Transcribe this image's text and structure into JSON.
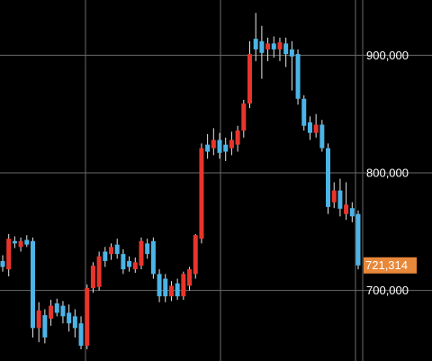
{
  "chart_data": {
    "type": "candlestick",
    "ylim": [
      640000,
      947000
    ],
    "yticks": [
      {
        "value": 700000,
        "label": "700,000"
      },
      {
        "value": 800000,
        "label": "800,000"
      },
      {
        "value": 900000,
        "label": "900,000"
      }
    ],
    "grid": true,
    "up_color": "#e8352c",
    "down_color": "#4cb4e6",
    "last_color": "#e8883a",
    "open": [
      725000,
      718000,
      742000,
      737000,
      743000,
      742000,
      668000,
      679000,
      676000,
      689000,
      687000,
      681000,
      678000,
      672000,
      653000,
      702000,
      703000,
      733000,
      731000,
      739000,
      731000,
      725000,
      718000,
      721000,
      740000,
      742000,
      714000,
      710000,
      695000,
      706000,
      695000,
      704000,
      714000,
      744000,
      824000,
      821000,
      828000,
      824000,
      821000,
      824000,
      836000,
      859000,
      914000,
      912000,
      905000,
      910000,
      905000,
      910000,
      905000,
      901000,
      863000,
      843000,
      834000,
      841000,
      821000,
      775000,
      785000,
      765000,
      770000,
      765000
    ],
    "high": [
      730000,
      748000,
      746000,
      745000,
      747000,
      745000,
      690000,
      684000,
      692000,
      693000,
      691000,
      688000,
      684000,
      678000,
      705000,
      724000,
      733000,
      737000,
      740000,
      744000,
      735000,
      729000,
      728000,
      745000,
      744000,
      745000,
      718000,
      714000,
      708000,
      710000,
      716000,
      720000,
      748000,
      825000,
      833000,
      838000,
      834000,
      830000,
      835000,
      840000,
      862000,
      912000,
      936000,
      925000,
      915000,
      916000,
      915000,
      915000,
      912000,
      905000,
      866000,
      848000,
      850000,
      845000,
      825000,
      792000,
      795000,
      792000,
      775000,
      768000
    ],
    "low": [
      716000,
      712000,
      736000,
      733000,
      737000,
      660000,
      656000,
      655000,
      670000,
      678000,
      672000,
      665000,
      660000,
      650000,
      650000,
      698000,
      700000,
      720000,
      726000,
      727000,
      714000,
      716000,
      715000,
      718000,
      727000,
      710000,
      690000,
      690000,
      691000,
      692000,
      692000,
      700000,
      710000,
      740000,
      812000,
      815000,
      812000,
      810000,
      815000,
      818000,
      830000,
      855000,
      895000,
      880000,
      895000,
      898000,
      895000,
      890000,
      870000,
      858000,
      836000,
      828000,
      830000,
      818000,
      765000,
      770000,
      763000,
      760000,
      758000,
      718000
    ],
    "close": [
      720000,
      744000,
      740000,
      742000,
      739000,
      668000,
      683000,
      660000,
      687000,
      681000,
      678000,
      672000,
      668000,
      653000,
      702000,
      721000,
      729000,
      725000,
      737000,
      731000,
      718000,
      720000,
      724000,
      742000,
      731000,
      714000,
      695000,
      695000,
      704000,
      695000,
      714000,
      718000,
      747000,
      821000,
      818000,
      828000,
      817000,
      818000,
      828000,
      836000,
      859000,
      901000,
      905000,
      902000,
      910000,
      905000,
      911000,
      901000,
      899000,
      863000,
      840000,
      834000,
      841000,
      821000,
      771000,
      785000,
      769500,
      773000,
      763000,
      721314
    ],
    "last_label": "721,314"
  }
}
